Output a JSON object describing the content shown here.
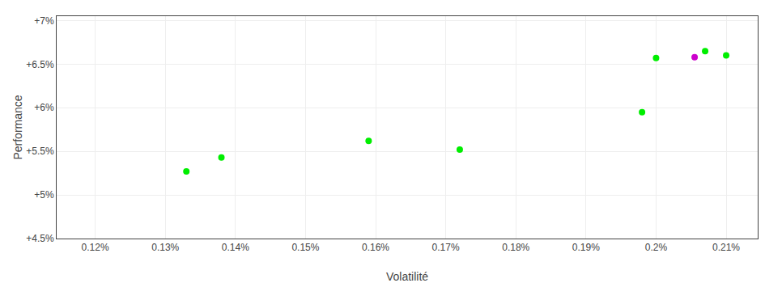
{
  "chart_data": {
    "type": "scatter",
    "xlabel": "Volatilité",
    "ylabel": "Performance",
    "xlim": [
      0.1145,
      0.2145
    ],
    "ylim": [
      4.5,
      7.05
    ],
    "xticks": [
      {
        "value": 0.12,
        "label": "0.12%"
      },
      {
        "value": 0.13,
        "label": "0.13%"
      },
      {
        "value": 0.14,
        "label": "0.14%"
      },
      {
        "value": 0.15,
        "label": "0.15%"
      },
      {
        "value": 0.16,
        "label": "0.16%"
      },
      {
        "value": 0.17,
        "label": "0.17%"
      },
      {
        "value": 0.18,
        "label": "0.18%"
      },
      {
        "value": 0.19,
        "label": "0.19%"
      },
      {
        "value": 0.2,
        "label": "0.2%"
      },
      {
        "value": 0.21,
        "label": "0.21%"
      }
    ],
    "yticks": [
      {
        "value": 4.5,
        "label": "+4.5%"
      },
      {
        "value": 5.0,
        "label": "+5%"
      },
      {
        "value": 5.5,
        "label": "+5.5%"
      },
      {
        "value": 6.0,
        "label": "+6%"
      },
      {
        "value": 6.5,
        "label": "+6.5%"
      },
      {
        "value": 7.0,
        "label": "+7%"
      }
    ],
    "grid": true,
    "series": [
      {
        "color": "#00ee00",
        "x": [
          0.133,
          0.138,
          0.159,
          0.172,
          0.198,
          0.2,
          0.207,
          0.21
        ],
        "values": [
          5.27,
          5.43,
          5.62,
          5.52,
          5.95,
          6.57,
          6.65,
          6.6
        ]
      },
      {
        "color": "#cc00cc",
        "x": [
          0.2055
        ],
        "values": [
          6.58
        ]
      }
    ]
  }
}
